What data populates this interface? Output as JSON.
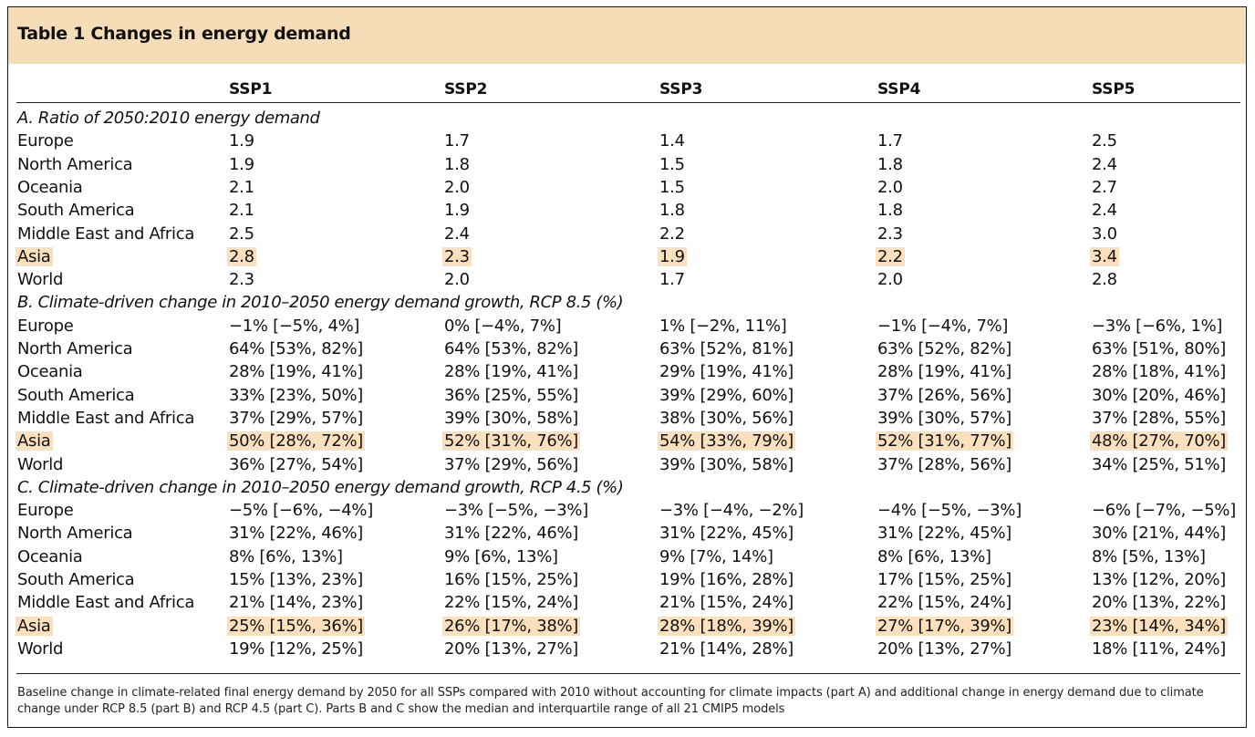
{
  "title": "Table 1 Changes in energy demand",
  "columns": [
    "SSP1",
    "SSP2",
    "SSP3",
    "SSP4",
    "SSP5"
  ],
  "sections": [
    {
      "heading": "A. Ratio of 2050:2010 energy demand",
      "rows": [
        {
          "region": "Europe",
          "values": [
            "1.9",
            "1.7",
            "1.4",
            "1.7",
            "2.5"
          ],
          "highlight": false
        },
        {
          "region": "North America",
          "values": [
            "1.9",
            "1.8",
            "1.5",
            "1.8",
            "2.4"
          ],
          "highlight": false
        },
        {
          "region": "Oceania",
          "values": [
            "2.1",
            "2.0",
            "1.5",
            "2.0",
            "2.7"
          ],
          "highlight": false
        },
        {
          "region": "South America",
          "values": [
            "2.1",
            "1.9",
            "1.8",
            "1.8",
            "2.4"
          ],
          "highlight": false
        },
        {
          "region": "Middle East and Africa",
          "values": [
            "2.5",
            "2.4",
            "2.2",
            "2.3",
            "3.0"
          ],
          "highlight": false
        },
        {
          "region": "Asia",
          "values": [
            "2.8",
            "2.3",
            "1.9",
            "2.2",
            "3.4"
          ],
          "highlight": true
        },
        {
          "region": "World",
          "values": [
            "2.3",
            "2.0",
            "1.7",
            "2.0",
            "2.8"
          ],
          "highlight": false
        }
      ]
    },
    {
      "heading": "B. Climate-driven change in 2010–2050 energy demand growth, RCP 8.5 (%)",
      "rows": [
        {
          "region": "Europe",
          "values": [
            "−1% [−5%, 4%]",
            "0% [−4%, 7%]",
            "1% [−2%, 11%]",
            "−1% [−4%, 7%]",
            "−3% [−6%, 1%]"
          ],
          "highlight": false
        },
        {
          "region": "North America",
          "values": [
            "64% [53%, 82%]",
            "64% [53%, 82%]",
            "63% [52%, 81%]",
            "63% [52%, 82%]",
            "63% [51%, 80%]"
          ],
          "highlight": false
        },
        {
          "region": "Oceania",
          "values": [
            "28% [19%, 41%]",
            "28% [19%, 41%]",
            "29% [19%, 41%]",
            "28% [19%, 41%]",
            "28% [18%, 41%]"
          ],
          "highlight": false
        },
        {
          "region": "South America",
          "values": [
            "33% [23%, 50%]",
            "36% [25%, 55%]",
            "39% [29%, 60%]",
            "37% [26%, 56%]",
            "30% [20%, 46%]"
          ],
          "highlight": false
        },
        {
          "region": "Middle East and Africa",
          "values": [
            "37% [29%, 57%]",
            "39% [30%, 58%]",
            "38% [30%, 56%]",
            "39% [30%, 57%]",
            "37% [28%, 55%]"
          ],
          "highlight": false
        },
        {
          "region": "Asia",
          "values": [
            "50% [28%, 72%]",
            "52% [31%, 76%]",
            "54% [33%, 79%]",
            "52% [31%, 77%]",
            "48% [27%, 70%]"
          ],
          "highlight": true
        },
        {
          "region": "World",
          "values": [
            "36% [27%, 54%]",
            "37% [29%, 56%]",
            "39% [30%, 58%]",
            "37% [28%, 56%]",
            "34% [25%, 51%]"
          ],
          "highlight": false
        }
      ]
    },
    {
      "heading": "C. Climate-driven change in 2010–2050 energy demand growth, RCP 4.5 (%)",
      "rows": [
        {
          "region": "Europe",
          "values": [
            "−5% [−6%, −4%]",
            "−3% [−5%, −3%]",
            "−3% [−4%, −2%]",
            "−4% [−5%, −3%]",
            "−6% [−7%, −5%]"
          ],
          "highlight": false
        },
        {
          "region": "North America",
          "values": [
            "31% [22%, 46%]",
            "31% [22%, 46%]",
            "31% [22%, 45%]",
            "31% [22%, 45%]",
            "30% [21%, 44%]"
          ],
          "highlight": false
        },
        {
          "region": "Oceania",
          "values": [
            "8% [6%, 13%]",
            "9% [6%, 13%]",
            "9% [7%, 14%]",
            "8% [6%, 13%]",
            "8% [5%, 13%]"
          ],
          "highlight": false
        },
        {
          "region": "South America",
          "values": [
            "15% [13%, 23%]",
            "16% [15%, 25%]",
            "19% [16%, 28%]",
            "17% [15%, 25%]",
            "13% [12%, 20%]"
          ],
          "highlight": false
        },
        {
          "region": "Middle East and Africa",
          "values": [
            "21% [14%, 23%]",
            "22% [15%, 24%]",
            "21% [15%, 24%]",
            "22% [15%, 24%]",
            "20% [13%, 22%]"
          ],
          "highlight": false
        },
        {
          "region": "Asia",
          "values": [
            "25% [15%, 36%]",
            "26% [17%, 38%]",
            "28% [18%, 39%]",
            "27% [17%, 39%]",
            "23% [14%, 34%]"
          ],
          "highlight": true
        },
        {
          "region": "World",
          "values": [
            "19% [12%, 25%]",
            "20% [13%, 27%]",
            "21% [14%, 28%]",
            "20% [13%, 27%]",
            "18% [11%, 24%]"
          ],
          "highlight": false
        }
      ]
    }
  ],
  "footnote": "Baseline change in climate-related final energy demand by 2050 for all SSPs compared with 2010 without accounting for climate impacts (part A) and additional change in energy demand due to climate change under RCP 8.5 (part B) and RCP 4.5 (part C). Parts B and C show the median and interquartile range of all 21 CMIP5 models",
  "colors": {
    "title_background": "#f5ddb8",
    "highlight": "#fbe0be",
    "border": "#1a1a1a"
  }
}
